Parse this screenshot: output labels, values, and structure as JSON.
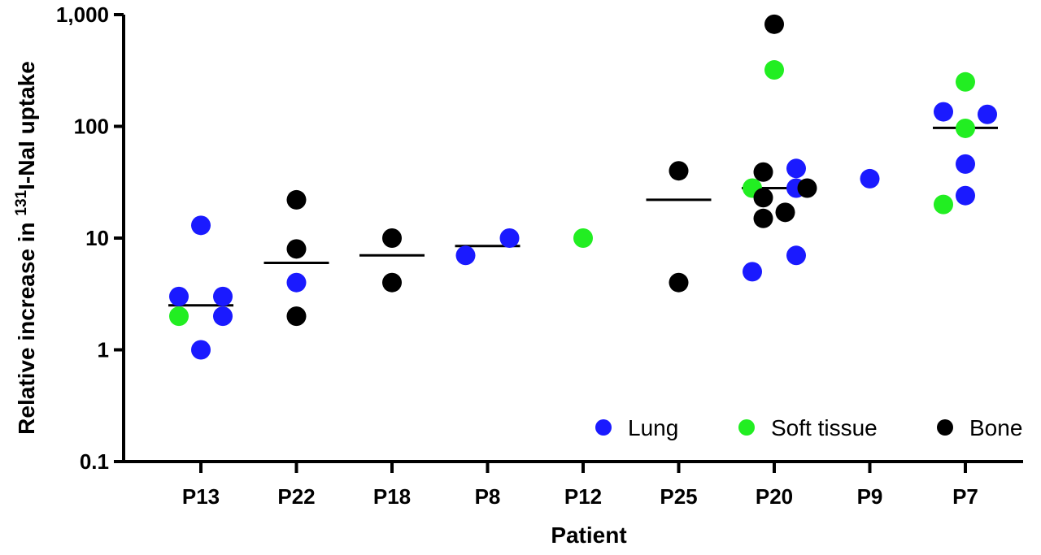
{
  "chart_data": {
    "type": "scatter",
    "title": "",
    "xlabel": "Patient",
    "ylabel": {
      "prefix": "Relative increase in ",
      "superscript": "131",
      "suffix": "I-NaI uptake"
    },
    "y_scale": "log",
    "ylim": [
      0.1,
      1000
    ],
    "y_ticks": [
      {
        "value": 0.1,
        "label": "0.1"
      },
      {
        "value": 1,
        "label": "1"
      },
      {
        "value": 10,
        "label": "10"
      },
      {
        "value": 100,
        "label": "100"
      },
      {
        "value": 1000,
        "label": "1,000"
      }
    ],
    "categories": [
      "P13",
      "P22",
      "P18",
      "P8",
      "P12",
      "P25",
      "P20",
      "P9",
      "P7"
    ],
    "legend_position": "bottom-right",
    "series": [
      {
        "name": "Lung",
        "color": "#1a1aff",
        "points": [
          {
            "category": "P13",
            "offset": 0,
            "y": 13
          },
          {
            "category": "P13",
            "offset": -1,
            "y": 3
          },
          {
            "category": "P13",
            "offset": 1,
            "y": 3
          },
          {
            "category": "P13",
            "offset": 1,
            "y": 2
          },
          {
            "category": "P13",
            "offset": 0,
            "y": 1
          },
          {
            "category": "P22",
            "offset": 0,
            "y": 4
          },
          {
            "category": "P8",
            "offset": -1,
            "y": 7
          },
          {
            "category": "P8",
            "offset": 1,
            "y": 10
          },
          {
            "category": "P20",
            "offset": 1,
            "y": 42
          },
          {
            "category": "P20",
            "offset": 1,
            "y": 28
          },
          {
            "category": "P20",
            "offset": 1,
            "y": 7
          },
          {
            "category": "P20",
            "offset": -1,
            "y": 5
          },
          {
            "category": "P9",
            "offset": 0,
            "y": 34
          },
          {
            "category": "P7",
            "offset": -1,
            "y": 135
          },
          {
            "category": "P7",
            "offset": 1,
            "y": 128
          },
          {
            "category": "P7",
            "offset": 0,
            "y": 46
          },
          {
            "category": "P7",
            "offset": 0,
            "y": 24
          }
        ]
      },
      {
        "name": "Soft tissue",
        "color": "#22ee22",
        "points": [
          {
            "category": "P13",
            "offset": -1,
            "y": 2
          },
          {
            "category": "P12",
            "offset": 0,
            "y": 10
          },
          {
            "category": "P20",
            "offset": 0,
            "y": 320
          },
          {
            "category": "P20",
            "offset": -1,
            "y": 28
          },
          {
            "category": "P7",
            "offset": 0,
            "y": 250
          },
          {
            "category": "P7",
            "offset": 0,
            "y": 96
          },
          {
            "category": "P7",
            "offset": -1,
            "y": 20
          }
        ]
      },
      {
        "name": "Bone",
        "color": "#000000",
        "points": [
          {
            "category": "P22",
            "offset": 0,
            "y": 22
          },
          {
            "category": "P22",
            "offset": 0,
            "y": 8
          },
          {
            "category": "P22",
            "offset": 0,
            "y": 2
          },
          {
            "category": "P18",
            "offset": 0,
            "y": 10
          },
          {
            "category": "P18",
            "offset": 0,
            "y": 4
          },
          {
            "category": "P25",
            "offset": 0,
            "y": 40
          },
          {
            "category": "P25",
            "offset": 0,
            "y": 4
          },
          {
            "category": "P20",
            "offset": 0,
            "y": 820
          },
          {
            "category": "P20",
            "offset": -0.5,
            "y": 39
          },
          {
            "category": "P20",
            "offset": -0.5,
            "y": 23
          },
          {
            "category": "P20",
            "offset": 1.5,
            "y": 28
          },
          {
            "category": "P20",
            "offset": 0.5,
            "y": 17
          },
          {
            "category": "P20",
            "offset": -0.5,
            "y": 15
          }
        ]
      }
    ],
    "medians": [
      {
        "category": "P13",
        "y": 2.5
      },
      {
        "category": "P22",
        "y": 6
      },
      {
        "category": "P18",
        "y": 7
      },
      {
        "category": "P8",
        "y": 8.5
      },
      {
        "category": "P25",
        "y": 22
      },
      {
        "category": "P20",
        "y": 28
      },
      {
        "category": "P7",
        "y": 97
      }
    ]
  }
}
